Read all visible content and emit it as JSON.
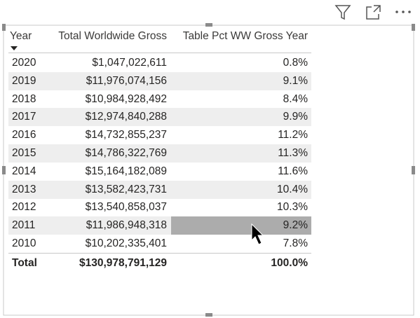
{
  "table": {
    "header": [
      "Year",
      "Total Worldwide Gross",
      "Table Pct WW Gross Year"
    ],
    "rows": [
      [
        "2020",
        "$1,047,022,611",
        "0.8%"
      ],
      [
        "2019",
        "$11,976,074,156",
        "9.1%"
      ],
      [
        "2018",
        "$10,984,928,492",
        "8.4%"
      ],
      [
        "2017",
        "$12,974,840,288",
        "9.9%"
      ],
      [
        "2016",
        "$14,732,855,237",
        "11.2%"
      ],
      [
        "2015",
        "$14,786,322,769",
        "11.3%"
      ],
      [
        "2014",
        "$15,164,182,089",
        "11.6%"
      ],
      [
        "2013",
        "$13,582,423,731",
        "10.4%"
      ],
      [
        "2012",
        "$13,540,858,037",
        "10.3%"
      ],
      [
        "2011",
        "$11,986,948,318",
        "9.2%"
      ],
      [
        "2010",
        "$10,202,335,401",
        "7.8%"
      ]
    ],
    "total": [
      "Total",
      "$130,978,791,129",
      "100.0%"
    ]
  }
}
